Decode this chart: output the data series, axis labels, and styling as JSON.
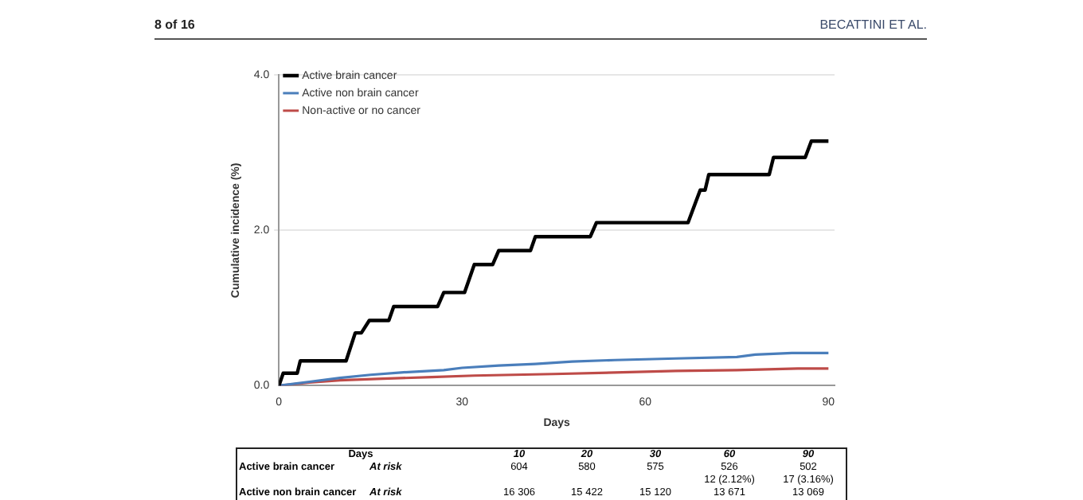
{
  "chart_data": {
    "type": "line",
    "xlabel": "Days",
    "ylabel": "Cumulative incidence (%)",
    "xlim": [
      0,
      91
    ],
    "xticks": [
      0,
      30,
      60,
      90
    ],
    "ylim": [
      0,
      4
    ],
    "yticks": [
      {
        "value": 0,
        "label": "0.0"
      },
      {
        "value": 2,
        "label": "2.0"
      },
      {
        "value": 4,
        "label": "4.0"
      }
    ],
    "grid": "y",
    "legend": "top left",
    "marker": "none",
    "line_style": "solid",
    "series": [
      {
        "name": "Active brain cancer",
        "color": "#000000",
        "x": [
          0,
          0.7,
          3,
          3.5,
          11,
          12.5,
          13.5,
          14.8,
          18,
          18.8,
          26,
          27,
          30.4,
          32,
          35,
          36,
          41.2,
          42,
          51,
          52,
          67,
          69,
          69.8,
          70.4,
          80.3,
          81,
          86.2,
          87.2,
          90
        ],
        "values": [
          0,
          0.16,
          0.16,
          0.32,
          0.32,
          0.68,
          0.68,
          0.84,
          0.84,
          1.02,
          1.02,
          1.2,
          1.2,
          1.56,
          1.56,
          1.74,
          1.74,
          1.92,
          1.92,
          2.1,
          2.1,
          2.52,
          2.52,
          2.72,
          2.72,
          2.94,
          2.94,
          3.15,
          3.15
        ]
      },
      {
        "name": "Active non brain cancer",
        "color": "#4a7ebb",
        "x": [
          0,
          5,
          10,
          15,
          20,
          27,
          30,
          36,
          42,
          48,
          55,
          65,
          75,
          78,
          84,
          90
        ],
        "values": [
          0,
          0.05,
          0.1,
          0.14,
          0.17,
          0.2,
          0.23,
          0.26,
          0.28,
          0.31,
          0.33,
          0.35,
          0.37,
          0.4,
          0.42,
          0.42
        ]
      },
      {
        "name": "Non-active or no cancer",
        "color": "#be4b48",
        "x": [
          0,
          5,
          10,
          17,
          25,
          32,
          45,
          55,
          65,
          75,
          85,
          90
        ],
        "values": [
          0,
          0.04,
          0.07,
          0.09,
          0.11,
          0.13,
          0.15,
          0.17,
          0.19,
          0.2,
          0.22,
          0.22
        ]
      }
    ],
    "annotations": [
      "8 of 16",
      "BECATTINI ET AL.",
      "Days",
      "10",
      "20",
      "30",
      "60",
      "90",
      "Active brain cancer",
      "At risk",
      "604",
      "580",
      "575",
      "526",
      "502",
      "12 (2.12%)",
      "17 (3.16%)",
      "Active non brain cancer",
      "At risk",
      "16 306",
      "15 422",
      "15 120",
      "13 671",
      "13 069"
    ]
  }
}
